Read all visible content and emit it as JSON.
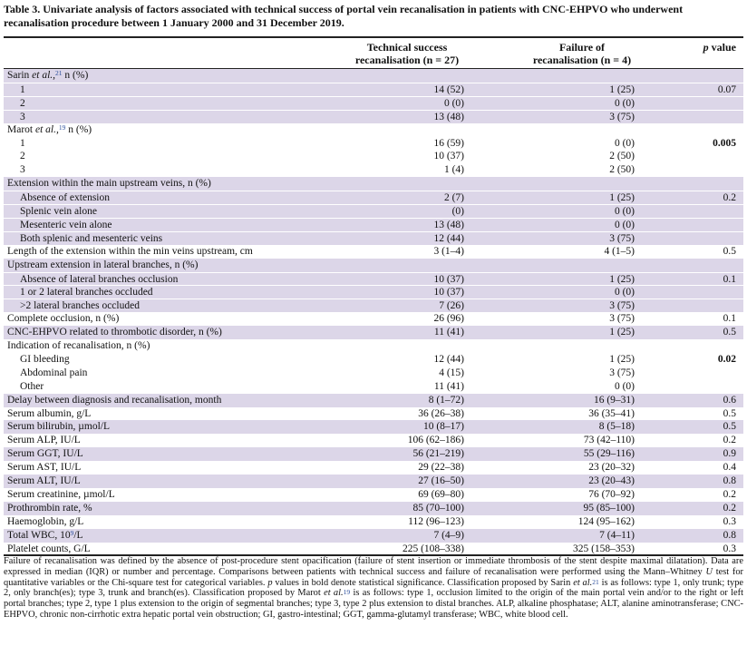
{
  "title": "Table 3. Univariate analysis of factors associated with technical success of portal vein recanalisation in patients with CNC-EHPVO who underwent recanalisation procedure between 1 January 2000 and 31 December 2019.",
  "header": {
    "columns": [
      {
        "lines": [
          "Technical success",
          "recanalisation (n = 27)"
        ]
      },
      {
        "lines": [
          "Failure of",
          "recanalisation (n = 4)"
        ]
      },
      {
        "lines": [
          [
            {
              "t": "p",
              "s": "i"
            },
            {
              "t": " value"
            }
          ]
        ]
      }
    ]
  },
  "groups": [
    {
      "label": [
        {
          "t": "Sarin "
        },
        {
          "t": "et al.,",
          "s": "i"
        },
        {
          "t": "21",
          "s": "sup"
        },
        {
          "t": " n (%)"
        }
      ],
      "rows": [
        {
          "label": "1",
          "values": [
            "14 (52)",
            "1 (25)",
            "0.07"
          ]
        },
        {
          "label": "2",
          "values": [
            "0 (0)",
            "0 (0)"
          ]
        },
        {
          "label": "3",
          "values": [
            "13 (48)",
            "3 (75)"
          ]
        }
      ]
    },
    {
      "label": [
        {
          "t": "Marot "
        },
        {
          "t": "et al.,",
          "s": "i"
        },
        {
          "t": "19",
          "s": "sup"
        },
        {
          "t": " n (%)"
        }
      ],
      "rows": [
        {
          "label": "1",
          "values": [
            "16 (59)",
            "0 (0)",
            "0.005"
          ],
          "p_bold": true
        },
        {
          "label": "2",
          "values": [
            "10 (37)",
            "2 (50)"
          ]
        },
        {
          "label": "3",
          "values": [
            "1 (4)",
            "2 (50)"
          ]
        }
      ]
    },
    {
      "label": "Extension within the main upstream veins, n (%)",
      "rows": [
        {
          "label": "Absence of extension",
          "values": [
            "2 (7)",
            "1 (25)",
            "0.2"
          ]
        },
        {
          "label": "Splenic vein alone",
          "values": [
            "(0)",
            "0 (0)"
          ]
        },
        {
          "label": "Mesenteric vein alone",
          "values": [
            "13 (48)",
            "0 (0)"
          ]
        },
        {
          "label": "Both splenic and mesenteric veins",
          "values": [
            "12 (44)",
            "3 (75)"
          ]
        }
      ]
    },
    {
      "label": "Length of the extension within the min veins upstream, cm",
      "values": [
        "3 (1–4)",
        "4 (1–5)",
        "0.5"
      ]
    },
    {
      "label": "Upstream extension in lateral branches, n (%)",
      "rows": [
        {
          "label": "Absence of lateral branches occlusion",
          "values": [
            "10 (37)",
            "1 (25)",
            "0.1"
          ]
        },
        {
          "label": "1 or 2 lateral branches occluded",
          "values": [
            "10 (37)",
            "0 (0)"
          ]
        },
        {
          "label": ">2 lateral branches occluded",
          "values": [
            "7 (26)",
            "3 (75)"
          ]
        }
      ]
    },
    {
      "label": "Complete occlusion, n (%)",
      "values": [
        "26 (96)",
        "3 (75)",
        "0.1"
      ]
    },
    {
      "label": "CNC-EHPVO related to thrombotic disorder, n (%)",
      "values": [
        "11 (41)",
        "1 (25)",
        "0.5"
      ]
    },
    {
      "label": "Indication of recanalisation, n (%)",
      "rows": [
        {
          "label": "GI bleeding",
          "values": [
            "12 (44)",
            "1 (25)",
            "0.02"
          ],
          "p_bold": true
        },
        {
          "label": "Abdominal pain",
          "values": [
            "4 (15)",
            "3 (75)"
          ]
        },
        {
          "label": "Other",
          "values": [
            "11 (41)",
            "0 (0)"
          ]
        }
      ]
    },
    {
      "label": "Delay between diagnosis and recanalisation, month",
      "values": [
        "8 (1–72)",
        "16 (9–31)",
        "0.6"
      ]
    },
    {
      "label": "Serum albumin, g/L",
      "values": [
        "36 (26–38)",
        "36 (35–41)",
        "0.5"
      ]
    },
    {
      "label": "Serum bilirubin, µmol/L",
      "values": [
        "10 (8–17)",
        "8 (5–18)",
        "0.5"
      ]
    },
    {
      "label": "Serum ALP, IU/L",
      "values": [
        "106 (62–186)",
        "73 (42–110)",
        "0.2"
      ]
    },
    {
      "label": "Serum GGT, IU/L",
      "values": [
        "56 (21–219)",
        "55 (29–116)",
        "0.9"
      ]
    },
    {
      "label": "Serum AST, IU/L",
      "values": [
        "29 (22–38)",
        "23 (20–32)",
        "0.4"
      ]
    },
    {
      "label": "Serum ALT, IU/L",
      "values": [
        "27 (16–50)",
        "23 (20–43)",
        "0.8"
      ]
    },
    {
      "label": "Serum creatinine, µmol/L",
      "values": [
        "69 (69–80)",
        "76 (70–92)",
        "0.2"
      ]
    },
    {
      "label": "Prothrombin rate, %",
      "values": [
        "85 (70–100)",
        "95 (85–100)",
        "0.2"
      ]
    },
    {
      "label": "Haemoglobin, g/L",
      "values": [
        "112 (96–123)",
        "124 (95–162)",
        "0.3"
      ]
    },
    {
      "label": [
        {
          "t": "Total WBC, 10"
        },
        {
          "t": "9",
          "s": "sup"
        },
        {
          "t": "/L"
        }
      ],
      "values": [
        "7 (4–9)",
        "7 (4–11)",
        "0.8"
      ]
    },
    {
      "label": "Platelet counts, G/L",
      "values": [
        "225 (108–338)",
        "325 (158–353)",
        "0.3"
      ]
    }
  ],
  "footnote": [
    {
      "t": "Failure of recanalisation was defined by the absence of post-procedure stent opacification (failure of stent insertion or immediate thrombosis of the stent despite maximal dilatation). Data are expressed in median (IQR) or number and percentage. Comparisons between patients with technical success and failure of recanalisation were performed using the Mann–Whitney "
    },
    {
      "t": "U",
      "s": "i"
    },
    {
      "t": " test for quantitative variables or the Chi-square test for categorical variables. "
    },
    {
      "t": "p",
      "s": "i"
    },
    {
      "t": " values in bold denote statistical significance. Classification proposed by Sarin "
    },
    {
      "t": "et al.",
      "s": "i"
    },
    {
      "t": "21",
      "s": "sup"
    },
    {
      "t": " is as follows: type 1, only trunk; type 2, only branch(es); type 3, trunk and branch(es). Classification proposed by Marot "
    },
    {
      "t": "et al.",
      "s": "i"
    },
    {
      "t": "19",
      "s": "sup"
    },
    {
      "t": " is as follows: type 1, occlusion limited to the origin of the main portal vein and/or to the right or left portal branches; type 2, type 1 plus extension to the origin of segmental branches; type 3, type 2 plus extension to distal branches. ALP, alkaline phosphatase; ALT, alanine aminotransferase; CNC-EHPVO, chronic non-cirrhotic extra hepatic portal vein obstruction; GI, gastro-intestinal; GGT, gamma-glutamyl transferase; WBC, white blood cell."
    }
  ]
}
